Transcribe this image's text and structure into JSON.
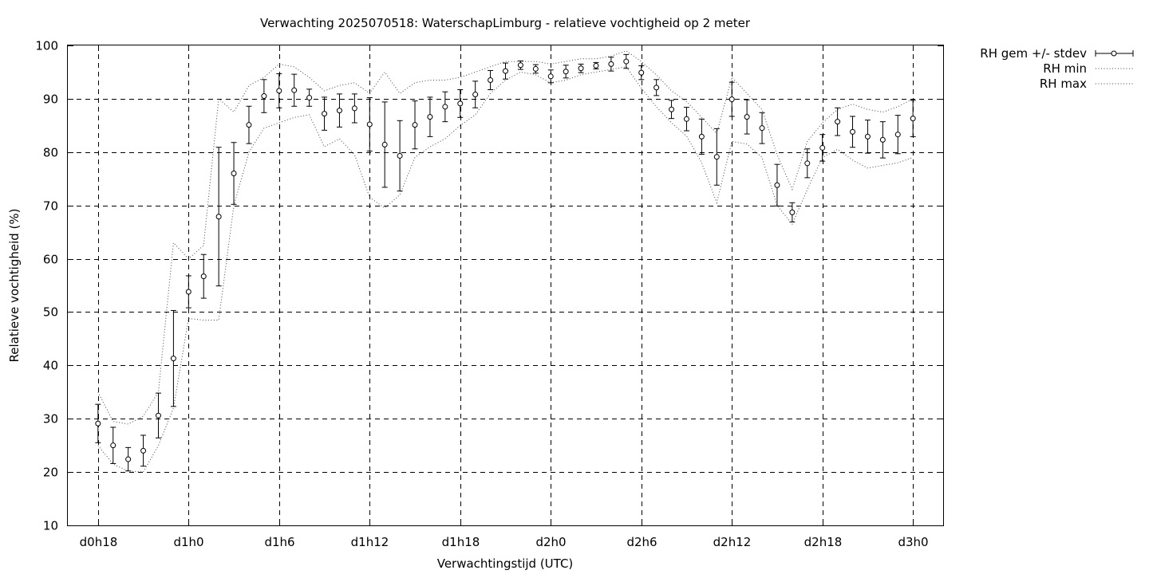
{
  "chart_data": {
    "type": "line",
    "title": "Verwachting 2025070518: WaterschapLimburg - relatieve vochtigheid op 2 meter",
    "xlabel": "Verwachtingstijd (UTC)",
    "ylabel": "Relatieve vochtigheid (%)",
    "ylim": [
      10,
      100
    ],
    "yticks": [
      10,
      20,
      30,
      40,
      50,
      60,
      70,
      80,
      90,
      100
    ],
    "xlim": [
      16,
      74
    ],
    "xticks": [
      {
        "x": 18,
        "label": "d0h18"
      },
      {
        "x": 24,
        "label": "d1h0"
      },
      {
        "x": 30,
        "label": "d1h6"
      },
      {
        "x": 36,
        "label": "d1h12"
      },
      {
        "x": 42,
        "label": "d1h18"
      },
      {
        "x": 48,
        "label": "d2h0"
      },
      {
        "x": 54,
        "label": "d2h6"
      },
      {
        "x": 60,
        "label": "d2h12"
      },
      {
        "x": 66,
        "label": "d2h18"
      },
      {
        "x": 72,
        "label": "d3h0"
      }
    ],
    "grid": true,
    "legend_position": "outside-top-right",
    "series": [
      {
        "name": "RH gem +/- stdev",
        "style": "errorbars",
        "x": [
          18,
          19,
          20,
          21,
          22,
          23,
          24,
          25,
          26,
          27,
          28,
          29,
          30,
          31,
          32,
          33,
          34,
          35,
          36,
          37,
          38,
          39,
          40,
          41,
          42,
          43,
          44,
          45,
          46,
          47,
          48,
          49,
          50,
          51,
          52,
          53,
          54,
          55,
          56,
          57,
          58,
          59,
          60,
          61,
          62,
          63,
          64,
          65,
          66,
          67,
          68,
          69,
          70,
          71,
          72
        ],
        "mean": [
          29.1,
          25.0,
          22.4,
          24.0,
          30.6,
          41.3,
          53.8,
          56.7,
          67.9,
          76.0,
          85.1,
          90.5,
          91.5,
          91.6,
          90.2,
          87.2,
          87.8,
          88.2,
          85.2,
          81.4,
          79.3,
          85.1,
          86.6,
          88.5,
          89.1,
          90.8,
          93.5,
          95.2,
          96.3,
          95.6,
          94.2,
          95.1,
          95.7,
          96.2,
          96.5,
          97.0,
          94.9,
          92.1,
          88.0,
          86.2,
          82.9,
          79.1,
          89.9,
          86.6,
          84.5,
          73.8,
          68.7,
          77.9,
          80.8,
          85.7,
          83.8,
          82.9,
          82.3,
          83.3,
          86.3
        ],
        "stdev": [
          3.6,
          3.4,
          2.2,
          2.9,
          4.2,
          9.0,
          3.0,
          4.1,
          13.0,
          5.8,
          3.5,
          3.1,
          3.2,
          3.0,
          1.6,
          3.1,
          3.1,
          2.7,
          5.0,
          8.0,
          6.6,
          4.5,
          3.7,
          2.8,
          2.6,
          2.5,
          1.8,
          1.5,
          0.8,
          0.8,
          1.2,
          1.2,
          0.8,
          0.6,
          1.3,
          1.3,
          1.3,
          1.5,
          1.7,
          2.2,
          3.3,
          5.3,
          3.2,
          3.2,
          2.9,
          3.9,
          1.8,
          2.7,
          2.5,
          2.6,
          2.9,
          3.1,
          3.4,
          3.6,
          3.4
        ]
      },
      {
        "name": "RH min",
        "style": "dotted",
        "x": [
          18,
          19,
          20,
          21,
          22,
          23,
          24,
          25,
          26,
          27,
          28,
          29,
          30,
          31,
          32,
          33,
          34,
          35,
          36,
          37,
          38,
          39,
          40,
          41,
          42,
          43,
          44,
          45,
          46,
          47,
          48,
          49,
          50,
          51,
          52,
          53,
          54,
          55,
          56,
          57,
          58,
          59,
          60,
          61,
          62,
          63,
          64,
          65,
          66,
          67,
          68,
          69,
          70,
          71,
          72
        ],
        "values": [
          25.0,
          21.5,
          20.2,
          20.0,
          25.0,
          32.0,
          48.8,
          48.5,
          48.5,
          70.0,
          80.0,
          84.5,
          85.5,
          86.5,
          87.0,
          81.0,
          82.5,
          79.5,
          71.5,
          69.5,
          72.0,
          79.0,
          81.0,
          82.5,
          85.0,
          87.0,
          91.0,
          93.5,
          95.0,
          94.5,
          93.0,
          93.5,
          94.5,
          95.0,
          95.5,
          96.0,
          92.0,
          88.5,
          85.5,
          83.0,
          78.0,
          70.5,
          82.0,
          81.5,
          79.0,
          70.0,
          66.5,
          73.0,
          79.0,
          80.5,
          78.5,
          77.0,
          77.5,
          78.0,
          79.0
        ]
      },
      {
        "name": "RH max",
        "style": "dotted",
        "x": [
          18,
          19,
          20,
          21,
          22,
          23,
          24,
          25,
          26,
          27,
          28,
          29,
          30,
          31,
          32,
          33,
          34,
          35,
          36,
          37,
          38,
          39,
          40,
          41,
          42,
          43,
          44,
          45,
          46,
          47,
          48,
          49,
          50,
          51,
          52,
          53,
          54,
          55,
          56,
          57,
          58,
          59,
          60,
          61,
          62,
          63,
          64,
          65,
          66,
          67,
          68,
          69,
          70,
          71,
          72
        ],
        "values": [
          35.0,
          29.5,
          29.0,
          30.5,
          35.0,
          63.0,
          60.0,
          62.5,
          90.0,
          87.5,
          92.5,
          94.0,
          96.5,
          96.0,
          94.0,
          91.5,
          92.5,
          93.0,
          91.0,
          95.0,
          91.0,
          93.0,
          93.5,
          93.5,
          94.0,
          95.0,
          96.0,
          97.0,
          97.0,
          97.0,
          96.5,
          97.0,
          97.5,
          97.5,
          98.0,
          99.0,
          97.0,
          94.5,
          91.5,
          89.5,
          86.5,
          83.5,
          94.0,
          91.0,
          88.0,
          79.5,
          73.0,
          82.0,
          85.5,
          88.0,
          89.0,
          88.0,
          87.5,
          88.5,
          90.0
        ]
      }
    ]
  }
}
